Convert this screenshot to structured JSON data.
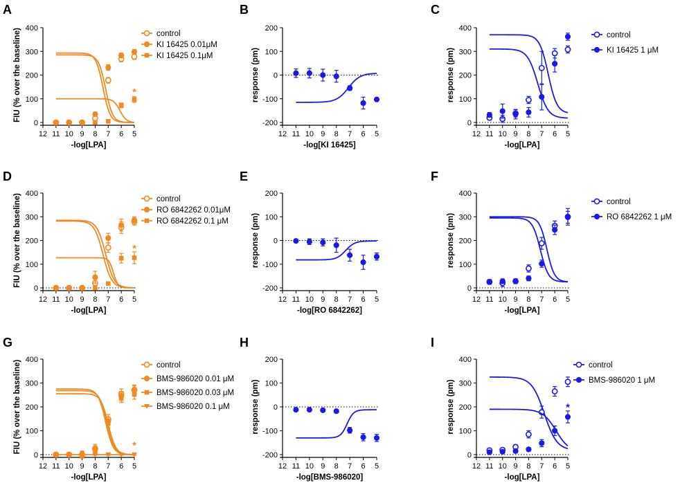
{
  "colors": {
    "orange": "#F2891E",
    "blue": "#1A1AE6"
  },
  "chart_data": [
    {
      "letter": "A",
      "type": "line",
      "title": "",
      "xlabel": "-log[LPA]",
      "ylabel": "FIU (% over the baseline)",
      "xlim": [
        12,
        5
      ],
      "ylim": [
        0,
        400
      ],
      "xticks": [
        "12",
        "11",
        "10",
        "9",
        "8",
        "7",
        "6",
        "5"
      ],
      "yticks": [
        "0",
        "100",
        "200",
        "300",
        "400"
      ],
      "zero_line": false,
      "color": "orange",
      "x": [
        11,
        10,
        9,
        8,
        7,
        6,
        5
      ],
      "series": [
        {
          "name": "control",
          "marker": "circle-open",
          "fit": [
            0,
            285,
            7.2,
            1.6
          ],
          "values": [
            0,
            0,
            0,
            18,
            178,
            268,
            278
          ],
          "err": [
            3,
            3,
            3,
            10,
            12,
            12,
            12
          ]
        },
        {
          "name": "KI 16425 0.01μM",
          "marker": "circle",
          "fit": [
            0,
            293,
            7.4,
            1.6
          ],
          "values": [
            0,
            0,
            0,
            35,
            232,
            283,
            298
          ],
          "err": [
            3,
            3,
            3,
            8,
            12,
            10,
            10
          ]
        },
        {
          "name": "KI 16425 0.1μM",
          "marker": "square",
          "fit": [
            0,
            100,
            6.1,
            1.8
          ],
          "values": [
            0,
            0,
            0,
            0,
            5,
            72,
            97
          ],
          "err": [
            3,
            3,
            3,
            3,
            5,
            10,
            12
          ]
        }
      ],
      "annotations": [
        {
          "text": "*",
          "x": 5,
          "y": 132
        }
      ]
    },
    {
      "letter": "B",
      "type": "line",
      "title": "",
      "xlabel": "-log[KI 16425]",
      "ylabel": "response (pm)",
      "xlim": [
        12,
        5
      ],
      "ylim": [
        -200,
        200
      ],
      "xticks": [
        "12",
        "11",
        "10",
        "9",
        "8",
        "7",
        "6",
        "5"
      ],
      "yticks": [
        "-200",
        "-100",
        "0",
        "100",
        "200"
      ],
      "zero_line": true,
      "color": "blue",
      "x": [
        11,
        10,
        9,
        8,
        7,
        6,
        5
      ],
      "series": [
        {
          "name": "KI 16425",
          "marker": "circle",
          "fit": [
            8,
            -115,
            7.1,
            1.0
          ],
          "values": [
            8,
            8,
            0,
            -5,
            -55,
            -118,
            -103
          ],
          "err": [
            18,
            20,
            25,
            25,
            10,
            25,
            5
          ]
        }
      ],
      "annotations": []
    },
    {
      "letter": "C",
      "type": "line",
      "title": "",
      "xlabel": "-log[LPA]",
      "ylabel": "response (pm)",
      "xlim": [
        12,
        5
      ],
      "ylim": [
        0,
        400
      ],
      "xticks": [
        "12",
        "11",
        "10",
        "9",
        "8",
        "7",
        "6",
        "5"
      ],
      "yticks": [
        "0",
        "100",
        "200",
        "300",
        "400"
      ],
      "zero_line": true,
      "color": "blue",
      "x": [
        11,
        10,
        9,
        8,
        7,
        6,
        5
      ],
      "series": [
        {
          "name": "control",
          "marker": "circle-open",
          "fit": [
            18,
            310,
            7.3,
            1.1
          ],
          "values": [
            20,
            15,
            38,
            95,
            230,
            292,
            308
          ],
          "err": [
            10,
            15,
            15,
            15,
            70,
            20,
            15
          ]
        },
        {
          "name": "KI 16425 1 μM",
          "marker": "circle",
          "fit": [
            38,
            370,
            6.5,
            1.3
          ],
          "values": [
            32,
            48,
            35,
            43,
            108,
            248,
            362
          ],
          "err": [
            10,
            30,
            20,
            20,
            55,
            35,
            15
          ]
        }
      ],
      "annotations": []
    },
    {
      "letter": "D",
      "type": "line",
      "title": "",
      "xlabel": "-log[LPA]",
      "ylabel": "FIU (% over the baseline)",
      "xlim": [
        12,
        5
      ],
      "ylim": [
        0,
        400
      ],
      "xticks": [
        "12",
        "11",
        "10",
        "9",
        "8",
        "7",
        "6",
        "5"
      ],
      "yticks": [
        "0",
        "100",
        "200",
        "300",
        "400"
      ],
      "zero_line": true,
      "color": "orange",
      "x": [
        11,
        10,
        9,
        8,
        7,
        6,
        5
      ],
      "series": [
        {
          "name": "control",
          "marker": "circle-open",
          "fit": [
            0,
            285,
            7.2,
            1.3
          ],
          "values": [
            0,
            0,
            0,
            20,
            170,
            255,
            280
          ],
          "err": [
            3,
            3,
            3,
            15,
            20,
            25,
            15
          ]
        },
        {
          "name": "RO 6842262 0.01μM",
          "marker": "circle",
          "fit": [
            0,
            282,
            7.4,
            1.3
          ],
          "values": [
            0,
            0,
            0,
            45,
            210,
            265,
            285
          ],
          "err": [
            3,
            3,
            3,
            25,
            20,
            25,
            15
          ]
        },
        {
          "name": "RO 6842262 0.1 μM",
          "marker": "square",
          "fit": [
            0,
            127,
            6.6,
            2.5
          ],
          "values": [
            0,
            0,
            0,
            0,
            18,
            125,
            127
          ],
          "err": [
            3,
            3,
            3,
            3,
            5,
            20,
            25
          ]
        }
      ],
      "annotations": [
        {
          "text": "*",
          "x": 5,
          "y": 170
        }
      ]
    },
    {
      "letter": "E",
      "type": "line",
      "title": "",
      "xlabel": "-log[RO 6842262]",
      "ylabel": "response (pm)",
      "xlim": [
        12,
        5
      ],
      "ylim": [
        -200,
        200
      ],
      "xticks": [
        "12",
        "11",
        "10",
        "9",
        "8",
        "7",
        "6",
        "5"
      ],
      "yticks": [
        "-200",
        "-100",
        "0",
        "100",
        "200"
      ],
      "zero_line": true,
      "color": "blue",
      "x": [
        11,
        10,
        9,
        8,
        7,
        6,
        5
      ],
      "series": [
        {
          "name": "RO 6842262",
          "marker": "circle",
          "fit": [
            -2,
            -82,
            7.3,
            1.3
          ],
          "values": [
            -2,
            -5,
            -8,
            -20,
            -62,
            -92,
            -68
          ],
          "err": [
            5,
            12,
            15,
            30,
            25,
            30,
            15
          ]
        }
      ],
      "annotations": []
    },
    {
      "letter": "F",
      "type": "line",
      "title": "",
      "xlabel": "-log[LPA]",
      "ylabel": "response (pm)",
      "xlim": [
        12,
        5
      ],
      "ylim": [
        0,
        400
      ],
      "xticks": [
        "12",
        "11",
        "10",
        "9",
        "8",
        "7",
        "6",
        "5"
      ],
      "yticks": [
        "0",
        "100",
        "200",
        "300",
        "400"
      ],
      "zero_line": true,
      "color": "blue",
      "x": [
        11,
        10,
        9,
        8,
        7,
        6,
        5
      ],
      "series": [
        {
          "name": "control",
          "marker": "circle-open",
          "fit": [
            25,
            295,
            7.1,
            1.4
          ],
          "values": [
            25,
            20,
            28,
            82,
            188,
            262,
            300
          ],
          "err": [
            10,
            15,
            10,
            15,
            25,
            20,
            35
          ]
        },
        {
          "name": "RO 6842262 1 μM",
          "marker": "circle",
          "fit": [
            25,
            300,
            6.6,
            1.5
          ],
          "values": [
            25,
            28,
            28,
            40,
            102,
            245,
            298
          ],
          "err": [
            10,
            10,
            10,
            10,
            15,
            20,
            25
          ]
        }
      ],
      "annotations": []
    },
    {
      "letter": "G",
      "type": "line",
      "title": "",
      "xlabel": "-log[LPA]",
      "ylabel": "FIU (% over the baseline)",
      "xlim": [
        12,
        5
      ],
      "ylim": [
        0,
        400
      ],
      "xticks": [
        "12",
        "11",
        "10",
        "9",
        "8",
        "7",
        "6",
        "5"
      ],
      "yticks": [
        "0",
        "100",
        "200",
        "300",
        "400"
      ],
      "zero_line": true,
      "color": "orange",
      "x": [
        11,
        10,
        9,
        8,
        7,
        6,
        5
      ],
      "series": [
        {
          "name": "control",
          "marker": "circle-open",
          "fit": [
            0,
            275,
            7.2,
            1.5
          ],
          "values": [
            0,
            0,
            0,
            25,
            148,
            255,
            272
          ],
          "err": [
            3,
            3,
            15,
            18,
            20,
            20,
            20
          ]
        },
        {
          "name": "BMS-986020 0.01 μM",
          "marker": "circle",
          "fit": [
            0,
            268,
            7.1,
            1.5
          ],
          "values": [
            0,
            0,
            0,
            22,
            140,
            245,
            268
          ],
          "err": [
            3,
            3,
            12,
            15,
            18,
            20,
            20
          ]
        },
        {
          "name": "BMS-986020 0.03 μM",
          "marker": "square",
          "fit": [
            0,
            255,
            7.0,
            1.5
          ],
          "values": [
            0,
            0,
            0,
            18,
            130,
            238,
            252
          ],
          "err": [
            3,
            3,
            10,
            15,
            18,
            20,
            20
          ]
        },
        {
          "name": "BMS-986020 0.1 μM",
          "marker": "triangle-down",
          "fit": [
            0,
            0,
            7.0,
            1.0
          ],
          "values": [
            0,
            0,
            0,
            0,
            0,
            0,
            0
          ],
          "err": [
            3,
            3,
            3,
            3,
            3,
            3,
            3
          ]
        }
      ],
      "annotations": [
        {
          "text": "*",
          "x": 5,
          "y": 42
        }
      ]
    },
    {
      "letter": "H",
      "type": "line",
      "title": "",
      "xlabel": "-log[BMS-986020]",
      "ylabel": "response (pm)",
      "xlim": [
        12,
        5
      ],
      "ylim": [
        -200,
        200
      ],
      "xticks": [
        "12",
        "11",
        "10",
        "9",
        "8",
        "7",
        "6",
        "5"
      ],
      "yticks": [
        "-200",
        "-100",
        "0",
        "100",
        "200"
      ],
      "zero_line": true,
      "color": "blue",
      "x": [
        11,
        10,
        9,
        8,
        7,
        6,
        5
      ],
      "series": [
        {
          "name": "BMS-986020",
          "marker": "circle",
          "fit": [
            -12,
            -130,
            7.2,
            1.8
          ],
          "values": [
            -12,
            -12,
            -14,
            -18,
            -98,
            -127,
            -130
          ],
          "err": [
            5,
            5,
            5,
            5,
            12,
            15,
            15
          ]
        }
      ],
      "annotations": []
    },
    {
      "letter": "I",
      "type": "line",
      "title": "",
      "xlabel": "-log[LPA]",
      "ylabel": "response (pm)",
      "xlim": [
        12,
        5
      ],
      "ylim": [
        0,
        400
      ],
      "xticks": [
        "12",
        "11",
        "10",
        "9",
        "8",
        "7",
        "6",
        "5"
      ],
      "yticks": [
        "0",
        "100",
        "200",
        "300",
        "400"
      ],
      "zero_line": true,
      "color": "blue",
      "x": [
        11,
        10,
        9,
        8,
        7,
        6,
        5
      ],
      "series": [
        {
          "name": "control",
          "marker": "circle-open",
          "fit": [
            18,
            325,
            6.8,
            0.9
          ],
          "values": [
            18,
            20,
            32,
            85,
            178,
            265,
            305
          ],
          "err": [
            8,
            8,
            10,
            15,
            25,
            20,
            20
          ]
        },
        {
          "name": "BMS-986020 1 μM",
          "marker": "circle",
          "fit": [
            10,
            190,
            5.9,
            0.85
          ],
          "values": [
            10,
            12,
            15,
            22,
            48,
            100,
            158
          ],
          "err": [
            5,
            5,
            5,
            8,
            15,
            20,
            25
          ]
        }
      ],
      "annotations": [
        {
          "text": "*",
          "x": 5,
          "y": 202
        }
      ]
    }
  ]
}
